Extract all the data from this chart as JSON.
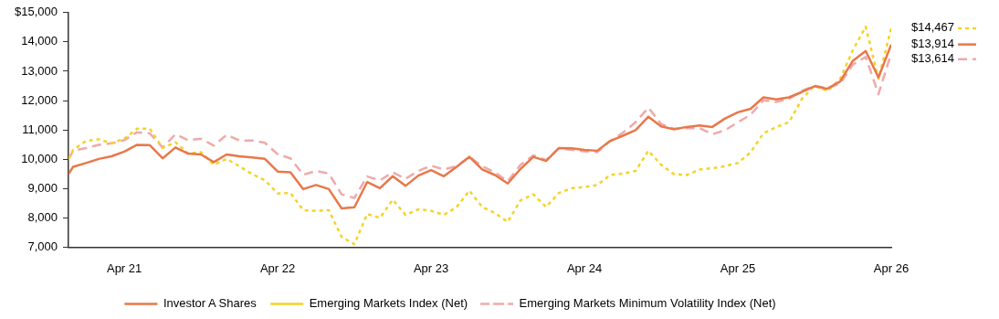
{
  "chart_data": {
    "type": "line",
    "x": [
      "2020-11-20",
      "2020-12",
      "2021-01",
      "2021-02",
      "2021-03",
      "2021-04",
      "2021-05",
      "2021-06",
      "2021-07",
      "2021-08",
      "2021-09",
      "2021-10",
      "2021-11",
      "2021-12",
      "2022-01",
      "2022-02",
      "2022-03",
      "2022-04",
      "2022-05",
      "2022-06",
      "2022-07",
      "2022-08",
      "2022-09",
      "2022-10",
      "2022-11",
      "2022-12",
      "2023-01",
      "2023-02",
      "2023-03",
      "2023-04",
      "2023-05",
      "2023-06",
      "2023-07",
      "2023-08",
      "2023-09",
      "2023-10",
      "2023-11",
      "2023-12",
      "2024-01",
      "2024-02",
      "2024-03",
      "2024-04",
      "2024-05",
      "2024-06",
      "2024-07",
      "2024-08",
      "2024-09",
      "2024-10",
      "2024-11",
      "2024-12",
      "2025-01",
      "2025-02",
      "2025-03",
      "2025-04",
      "2025-05",
      "2025-06",
      "2025-07",
      "2025-08",
      "2025-09",
      "2025-10",
      "2025-11",
      "2025-12",
      "2026-01",
      "2026-02",
      "2026-03",
      "2026-04"
    ],
    "series": [
      {
        "name": "Investor A Shares",
        "color": "#e8784a",
        "line_style": "solid",
        "values": [
          9500,
          9740,
          9870,
          10010,
          10100,
          10260,
          10490,
          10480,
          10030,
          10400,
          10190,
          10160,
          9900,
          10160,
          10100,
          10060,
          10010,
          9580,
          9550,
          8980,
          9120,
          8980,
          8320,
          8360,
          9220,
          9010,
          9420,
          9090,
          9440,
          9630,
          9420,
          9740,
          10080,
          9650,
          9460,
          9170,
          9670,
          10080,
          9940,
          10380,
          10370,
          10320,
          10290,
          10620,
          10800,
          10990,
          11450,
          11120,
          11020,
          11100,
          11150,
          11100,
          11390,
          11600,
          11720,
          12110,
          12040,
          12110,
          12290,
          12490,
          12400,
          12650,
          13360,
          13690,
          12790,
          13914
        ],
        "value_labels": [
          null,
          null,
          null,
          null,
          null,
          null,
          null,
          null,
          null,
          null,
          null,
          null,
          null,
          null,
          null,
          null,
          null,
          null,
          null,
          null,
          null,
          null,
          null,
          null,
          null,
          null,
          null,
          null,
          null,
          null,
          null,
          null,
          null,
          null,
          null,
          null,
          null,
          null,
          null,
          null,
          null,
          null,
          null,
          null,
          null,
          null,
          null,
          null,
          null,
          null,
          null,
          null,
          null,
          null,
          null,
          null,
          null,
          null,
          null,
          null,
          null,
          null,
          null,
          null,
          null,
          "$13,914"
        ]
      },
      {
        "name": "Emerging Markets Index (Net)",
        "color": "#f5d327",
        "line_style": "dotted",
        "values": [
          10000,
          10320,
          10620,
          10680,
          10540,
          10700,
          11040,
          11040,
          10380,
          10580,
          10190,
          10240,
          9810,
          10010,
          9760,
          9490,
          9280,
          8830,
          8850,
          8260,
          8240,
          8260,
          7350,
          7100,
          8130,
          8000,
          8620,
          8100,
          8290,
          8240,
          8100,
          8370,
          8930,
          8370,
          8160,
          7860,
          8600,
          8800,
          8370,
          8850,
          9010,
          9050,
          9120,
          9460,
          9510,
          9600,
          10290,
          9810,
          9490,
          9460,
          9650,
          9690,
          9760,
          9870,
          10240,
          10880,
          11100,
          11260,
          12050,
          12510,
          12320,
          12740,
          13720,
          14520,
          12740,
          14467
        ],
        "value_labels": [
          null,
          null,
          null,
          null,
          null,
          null,
          null,
          null,
          null,
          null,
          null,
          null,
          null,
          null,
          null,
          null,
          null,
          null,
          null,
          null,
          null,
          null,
          null,
          null,
          null,
          null,
          null,
          null,
          null,
          null,
          null,
          null,
          null,
          null,
          null,
          null,
          null,
          null,
          null,
          null,
          null,
          null,
          null,
          null,
          null,
          null,
          null,
          null,
          null,
          null,
          null,
          null,
          null,
          null,
          null,
          null,
          null,
          null,
          null,
          null,
          null,
          null,
          null,
          null,
          null,
          "$14,467"
        ]
      },
      {
        "name": "Emerging Markets Minimum Volatility Index (Net)",
        "color": "#efaaaa",
        "line_style": "dashed",
        "values": [
          10000,
          10290,
          10380,
          10490,
          10540,
          10650,
          10920,
          10880,
          10400,
          10850,
          10650,
          10700,
          10460,
          10830,
          10640,
          10640,
          10560,
          10170,
          10030,
          9470,
          9600,
          9510,
          8800,
          8680,
          9410,
          9280,
          9550,
          9330,
          9600,
          9780,
          9650,
          9760,
          10080,
          9760,
          9550,
          9250,
          9810,
          10130,
          9970,
          10370,
          10320,
          10270,
          10240,
          10620,
          10900,
          11260,
          11760,
          11200,
          11040,
          11060,
          11060,
          10850,
          10990,
          11260,
          11520,
          12010,
          11950,
          12060,
          12330,
          12510,
          12420,
          12580,
          13230,
          13490,
          12220,
          13614
        ],
        "value_labels": [
          null,
          null,
          null,
          null,
          null,
          null,
          null,
          null,
          null,
          null,
          null,
          null,
          null,
          null,
          null,
          null,
          null,
          null,
          null,
          null,
          null,
          null,
          null,
          null,
          null,
          null,
          null,
          null,
          null,
          null,
          null,
          null,
          null,
          null,
          null,
          null,
          null,
          null,
          null,
          null,
          null,
          null,
          null,
          null,
          null,
          null,
          null,
          null,
          null,
          null,
          null,
          null,
          null,
          null,
          null,
          null,
          null,
          null,
          null,
          null,
          null,
          null,
          null,
          null,
          null,
          "$13,614"
        ]
      }
    ],
    "xlim": [
      "2020-11-20",
      "2026-04"
    ],
    "xticks": [
      {
        "value": "2021-04",
        "label": "Apr 21"
      },
      {
        "value": "2022-04",
        "label": "Apr 22"
      },
      {
        "value": "2023-04",
        "label": "Apr 23"
      },
      {
        "value": "2024-04",
        "label": "Apr 24"
      },
      {
        "value": "2025-04",
        "label": "Apr 25"
      },
      {
        "value": "2026-04",
        "label": "Apr 26"
      }
    ],
    "ylim": [
      7000,
      15000
    ],
    "yticks": [
      {
        "value": 7000,
        "label": "7,000"
      },
      {
        "value": 8000,
        "label": "8,000"
      },
      {
        "value": 9000,
        "label": "9,000"
      },
      {
        "value": 10000,
        "label": "10,000"
      },
      {
        "value": 11000,
        "label": "11,000"
      },
      {
        "value": 12000,
        "label": "12,000"
      },
      {
        "value": 13000,
        "label": "13,000"
      },
      {
        "value": 14000,
        "label": "14,000"
      },
      {
        "value": 15000,
        "label": "$15,000"
      }
    ],
    "grid": false,
    "legend": "bottom",
    "marker": "none"
  }
}
